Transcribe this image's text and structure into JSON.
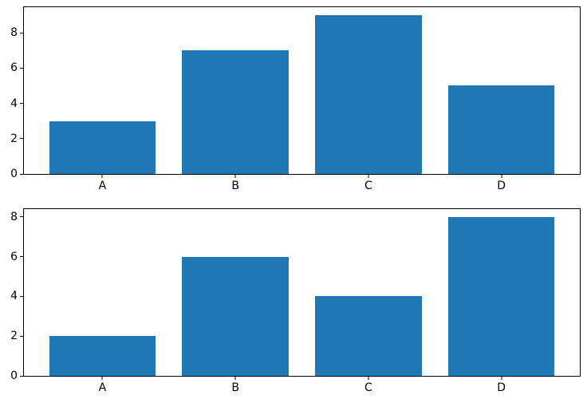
{
  "figure": {
    "background": "#ffffff",
    "bar_color": "#1f77b4",
    "spine_color": "#000000",
    "tick_color": "#000000",
    "text_color": "#000000"
  },
  "chart_data": [
    {
      "type": "bar",
      "name": "top-bar-chart",
      "categories": [
        "A",
        "B",
        "C",
        "D"
      ],
      "values": [
        3,
        7,
        9,
        5
      ],
      "title": "",
      "xlabel": "",
      "ylabel": "",
      "yticks": [
        0,
        2,
        4,
        6,
        8
      ],
      "ylim": [
        0,
        9.45
      ],
      "xlim": [
        -0.59,
        3.59
      ],
      "bar_width": 0.8,
      "grid": false,
      "legend": null
    },
    {
      "type": "bar",
      "name": "bottom-bar-chart",
      "categories": [
        "A",
        "B",
        "C",
        "D"
      ],
      "values": [
        2,
        6,
        4,
        8
      ],
      "title": "",
      "xlabel": "",
      "ylabel": "",
      "yticks": [
        0,
        2,
        4,
        6,
        8
      ],
      "ylim": [
        0,
        8.4
      ],
      "xlim": [
        -0.59,
        3.59
      ],
      "bar_width": 0.8,
      "grid": false,
      "legend": null
    }
  ]
}
